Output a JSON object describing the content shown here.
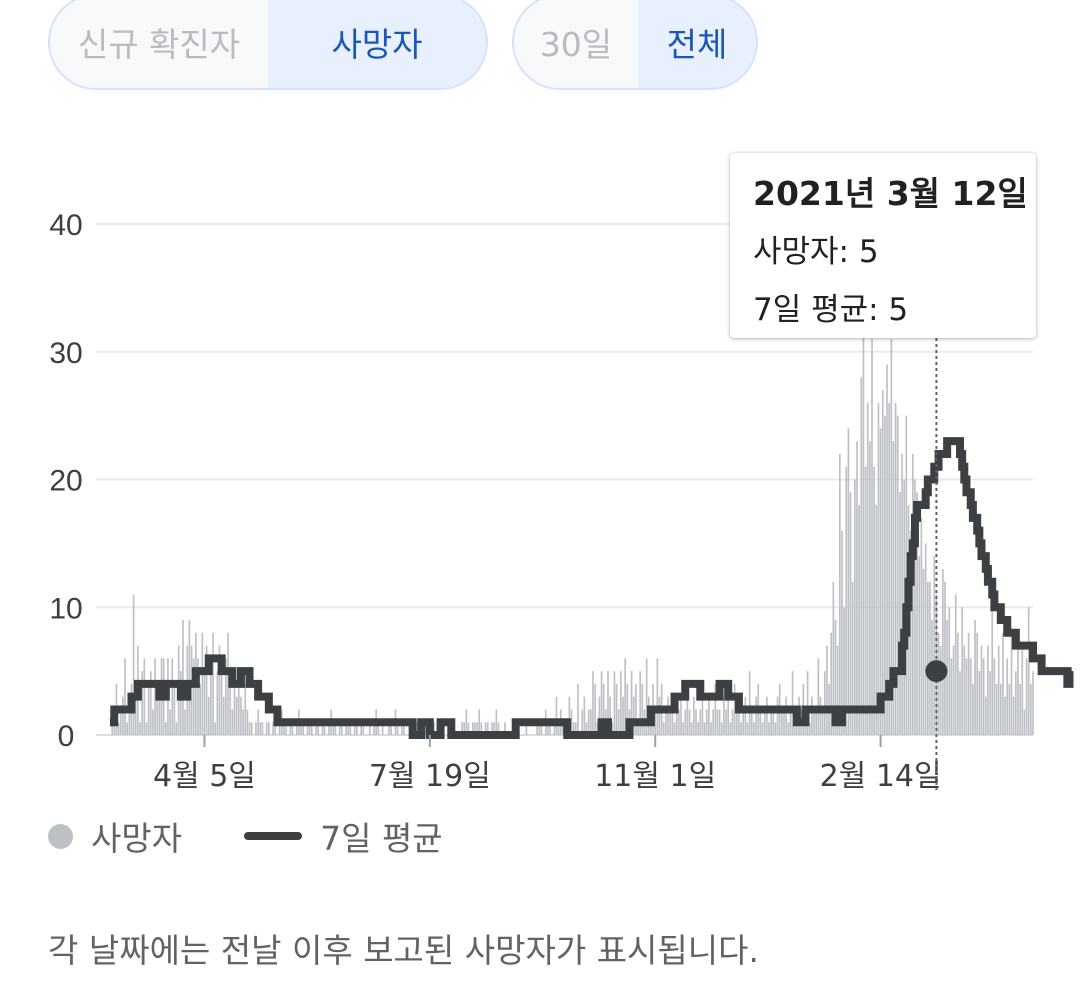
{
  "toggles": {
    "metric": [
      {
        "label": "신규 확진자",
        "selected": false
      },
      {
        "label": "사망자",
        "selected": true
      }
    ],
    "range": [
      {
        "label": "30일",
        "selected": false
      },
      {
        "label": "전체",
        "selected": true
      }
    ]
  },
  "tooltip": {
    "date": "2021년 3월 12일",
    "deaths_label": "사망자: 5",
    "avg_label": "7일 평균: 5"
  },
  "legend": {
    "bars": "사망자",
    "line": "7일 평균"
  },
  "note": "각 날짜에는 전날 이후 보고된 사망자가 표시됩니다.",
  "colors": {
    "bar": "#bdc1c6",
    "line": "#3c4043",
    "grid": "#e8eaed",
    "toggle_selected_text": "#1a56b8",
    "toggle_selected_bg": "#e8f0fe"
  },
  "chart_data": {
    "type": "bar",
    "overlay": "line",
    "ylim": [
      0,
      40
    ],
    "yticks": [
      0,
      10,
      20,
      30,
      40
    ],
    "xticks": [
      {
        "label": "4월 5일",
        "day": 76
      },
      {
        "label": "7월 19일",
        "day": 181
      },
      {
        "label": "11월 1일",
        "day": 286
      },
      {
        "label": "2월 14일",
        "day": 391
      }
    ],
    "first_day": 32,
    "last_day": 417,
    "highlight_day": 417,
    "highlight_value": 5,
    "deaths": [
      0,
      1,
      2,
      4,
      1,
      2,
      3,
      6,
      1,
      2,
      4,
      11,
      3,
      7,
      1,
      5,
      6,
      1,
      4,
      5,
      2,
      6,
      3,
      4,
      6,
      6,
      1,
      6,
      2,
      6,
      4,
      1,
      7,
      5,
      9,
      2,
      7,
      9,
      7,
      6,
      8,
      6,
      4,
      8,
      5,
      7,
      3,
      5,
      8,
      1,
      5,
      7,
      5,
      3,
      6,
      8,
      4,
      2,
      5,
      3,
      5,
      3,
      2,
      4,
      2,
      1,
      1,
      0,
      1,
      2,
      1,
      1,
      0,
      1,
      1,
      0,
      1,
      1,
      0,
      1,
      2,
      1,
      1,
      0,
      1,
      1,
      0,
      1,
      2,
      1,
      1,
      0,
      1,
      1,
      1,
      0,
      1,
      1,
      0,
      1,
      1,
      0,
      1,
      2,
      1,
      1,
      0,
      1,
      1,
      0,
      1,
      1,
      1,
      0,
      1,
      1,
      0,
      1,
      1,
      0,
      0,
      1,
      0,
      1,
      2,
      1,
      0,
      1,
      0,
      0,
      1,
      1,
      0,
      2,
      1,
      0,
      1,
      1,
      0,
      0,
      1,
      0,
      0,
      1,
      0,
      0,
      0,
      1,
      0,
      0,
      0,
      1,
      0,
      0,
      0,
      1,
      0,
      0,
      0,
      1,
      0,
      0,
      0,
      0,
      1,
      1,
      2,
      1,
      0,
      1,
      1,
      1,
      2,
      1,
      0,
      1,
      1,
      0,
      1,
      1,
      2,
      1,
      0,
      0,
      1,
      0,
      0,
      0,
      0,
      1,
      0,
      0,
      0,
      0,
      1,
      0,
      0,
      0,
      0,
      1,
      1,
      1,
      0,
      2,
      1,
      1,
      0,
      1,
      3,
      1,
      2,
      1,
      0,
      1,
      3,
      2,
      1,
      1,
      4,
      0,
      2,
      3,
      1,
      2,
      2,
      5,
      4,
      1,
      3,
      5,
      4,
      2,
      5,
      3,
      1,
      5,
      4,
      2,
      5,
      3,
      6,
      4,
      2,
      5,
      3,
      4,
      1,
      5,
      4,
      2,
      6,
      3,
      1,
      4,
      2,
      6,
      3,
      4,
      1,
      2,
      3,
      2,
      3,
      1,
      2,
      2,
      3,
      1,
      2,
      4,
      2,
      1,
      3,
      2,
      1,
      2,
      3,
      1,
      2,
      3,
      1,
      2,
      4,
      2,
      2,
      1,
      3,
      2,
      3,
      1,
      2,
      4,
      2,
      2,
      1,
      2,
      3,
      1,
      5,
      2,
      1,
      3,
      4,
      2,
      1,
      2,
      3,
      1,
      2,
      2,
      1,
      3,
      4,
      2,
      2,
      3,
      1,
      2,
      5,
      2,
      1,
      3,
      2,
      4,
      2,
      5,
      1,
      3,
      2,
      2,
      6,
      3,
      2,
      5,
      7,
      4,
      8,
      12,
      9,
      7,
      22,
      16,
      10,
      21,
      24,
      19,
      12,
      20,
      23,
      18,
      28,
      32,
      21,
      26,
      23,
      31,
      21,
      18,
      26,
      24,
      27,
      25,
      29,
      26,
      31,
      23,
      26,
      25,
      19,
      22,
      20,
      25,
      18,
      16,
      22,
      20,
      19,
      14,
      17,
      13,
      15,
      12,
      12,
      9,
      14,
      11,
      8,
      7,
      13,
      12,
      9,
      10,
      6,
      7,
      11,
      8,
      5,
      10,
      7,
      6,
      8,
      6,
      4,
      9,
      8,
      5,
      7,
      6,
      3,
      7,
      5,
      10,
      6,
      4,
      7,
      4,
      8,
      3,
      6,
      4,
      8,
      3,
      5,
      8,
      4,
      7,
      2,
      6,
      10,
      4,
      5
    ],
    "avg7": [
      1,
      1,
      2,
      2,
      2,
      2,
      2,
      2,
      2,
      2,
      3,
      3,
      3,
      4,
      4,
      4,
      4,
      4,
      4,
      4,
      4,
      4,
      4,
      3,
      3,
      3,
      4,
      4,
      4,
      4,
      4,
      4,
      4,
      3,
      3,
      3,
      4,
      4,
      4,
      4,
      5,
      5,
      5,
      5,
      5,
      5,
      6,
      6,
      6,
      6,
      6,
      6,
      5,
      5,
      5,
      5,
      5,
      4,
      4,
      4,
      4,
      5,
      5,
      5,
      5,
      4,
      4,
      4,
      4,
      3,
      3,
      3,
      3,
      3,
      2,
      2,
      2,
      2,
      1,
      1,
      1,
      1,
      1,
      1,
      1,
      1,
      1,
      1,
      1,
      1,
      1,
      1,
      1,
      1,
      1,
      1,
      1,
      1,
      1,
      1,
      1,
      1,
      1,
      1,
      1,
      1,
      1,
      1,
      1,
      1,
      1,
      1,
      1,
      1,
      1,
      1,
      1,
      1,
      1,
      1,
      1,
      1,
      1,
      1,
      1,
      1,
      1,
      1,
      1,
      1,
      1,
      1,
      1,
      1,
      1,
      1,
      1,
      1,
      1,
      1,
      1,
      0,
      0,
      0,
      0,
      1,
      1,
      1,
      1,
      0,
      0,
      0,
      0,
      0,
      1,
      1,
      1,
      1,
      1,
      0,
      0,
      0,
      0,
      0,
      0,
      0,
      0,
      0,
      0,
      0,
      0,
      0,
      0,
      0,
      0,
      0,
      0,
      0,
      0,
      0,
      0,
      0,
      0,
      0,
      0,
      0,
      0,
      0,
      0,
      1,
      1,
      1,
      1,
      1,
      1,
      1,
      1,
      1,
      1,
      1,
      1,
      1,
      1,
      1,
      1,
      1,
      1,
      1,
      1,
      1,
      1,
      1,
      1,
      0,
      0,
      0,
      0,
      0,
      0,
      0,
      0,
      0,
      0,
      0,
      0,
      0,
      0,
      0,
      0,
      1,
      1,
      1,
      0,
      0,
      0,
      0,
      0,
      0,
      0,
      0,
      0,
      0,
      1,
      1,
      1,
      1,
      1,
      1,
      1,
      1,
      1,
      1,
      2,
      2,
      2,
      2,
      2,
      2,
      2,
      2,
      2,
      2,
      2,
      3,
      3,
      3,
      3,
      3,
      4,
      4,
      4,
      4,
      4,
      4,
      4,
      3,
      3,
      3,
      3,
      3,
      3,
      3,
      3,
      3,
      4,
      4,
      4,
      4,
      3,
      3,
      3,
      3,
      3,
      2,
      2,
      2,
      2,
      2,
      2,
      2,
      2,
      2,
      2,
      2,
      2,
      2,
      2,
      2,
      2,
      2,
      2,
      2,
      2,
      2,
      2,
      2,
      2,
      2,
      2,
      2,
      1,
      1,
      1,
      1,
      2,
      2,
      2,
      2,
      2,
      2,
      2,
      2,
      2,
      2,
      2,
      2,
      2,
      2,
      1,
      1,
      1,
      2,
      2,
      2,
      2,
      2,
      2,
      2,
      2,
      2,
      2,
      2,
      2,
      2,
      2,
      2,
      2,
      2,
      2,
      3,
      3,
      3,
      3,
      4,
      4,
      5,
      5,
      5,
      5,
      7,
      8,
      10,
      12,
      14,
      15,
      17,
      18,
      18,
      18,
      18,
      19,
      20,
      20,
      20,
      21,
      21,
      22,
      22,
      22,
      22,
      23,
      23,
      23,
      23,
      23,
      23,
      22,
      21,
      20,
      19,
      19,
      18,
      17,
      17,
      16,
      15,
      14,
      14,
      13,
      12,
      12,
      11,
      10,
      10,
      10,
      9,
      9,
      9,
      8,
      8,
      8,
      8,
      7,
      7,
      7,
      7,
      7,
      7,
      7,
      7,
      6,
      6,
      6,
      6,
      5,
      5,
      5,
      5,
      5,
      5,
      5,
      5,
      5,
      5,
      5,
      5,
      4,
      5,
      5
    ]
  }
}
